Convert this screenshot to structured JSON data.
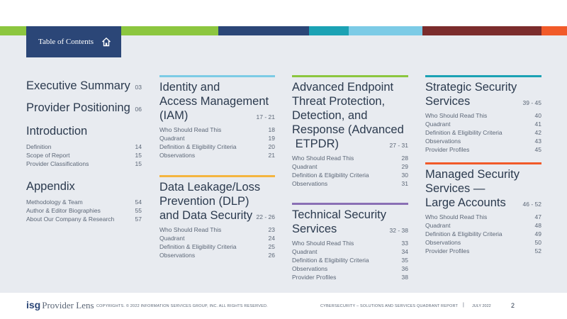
{
  "header": {
    "tab_label": "Table of Contents",
    "tab_icon": "home-icon",
    "color_bar": [
      "#8cc63f",
      "#8cc63f",
      "#2b4677",
      "#1ba2b4",
      "#7ccbe6",
      "#7b2c2c",
      "#f15a29"
    ]
  },
  "col1": {
    "exec_summary": {
      "title": "Executive Summary",
      "page": "03"
    },
    "provider_positioning": {
      "title": "Provider Positioning",
      "page": "06"
    },
    "introduction": {
      "title": "Introduction",
      "items": [
        {
          "label": "Definition",
          "page": "14"
        },
        {
          "label": "Scope of Report",
          "page": "15"
        },
        {
          "label": "Provider Classifications",
          "page": "15"
        }
      ]
    },
    "appendix": {
      "title": "Appendix",
      "items": [
        {
          "label": "Methodology & Team",
          "page": "54"
        },
        {
          "label": "Author & Editor Biographies",
          "page": "55"
        },
        {
          "label": "About Our Company & Research",
          "page": "57"
        }
      ]
    }
  },
  "col2": {
    "iam": {
      "color": "#7ccbe6",
      "title_lines": [
        "Identity and",
        "Access Management",
        "(IAM)"
      ],
      "pages": "17 - 21",
      "items": [
        {
          "label": "Who Should Read This",
          "page": "18"
        },
        {
          "label": "Quadrant",
          "page": "19"
        },
        {
          "label": "Definition & Eligibility Criteria",
          "page": "20"
        },
        {
          "label": "Observations",
          "page": "21"
        }
      ]
    },
    "dlp": {
      "color": "#f4b53f",
      "title_lines": [
        "Data Leakage/Loss",
        "Prevention (DLP)",
        "and Data Security"
      ],
      "pages": "22 - 26",
      "items": [
        {
          "label": "Who Should Read This",
          "page": "23"
        },
        {
          "label": "Quadrant",
          "page": "24"
        },
        {
          "label": "Definition & Eligibility Criteria",
          "page": "25"
        },
        {
          "label": "Observations",
          "page": "26"
        }
      ]
    }
  },
  "col3": {
    "etpdr": {
      "color": "#8cc63f",
      "title_lines": [
        "Advanced Endpoint",
        "Threat Protection,",
        "Detection, and",
        "Response (Advanced",
        " ETPDR)"
      ],
      "pages": "27 - 31",
      "items": [
        {
          "label": "Who Should Read This",
          "page": "28"
        },
        {
          "label": "Quadrant",
          "page": "29"
        },
        {
          "label": "Definition & Eligibility Criteria",
          "page": "30"
        },
        {
          "label": "Observations",
          "page": "31"
        }
      ]
    },
    "tss": {
      "color": "#8a6fb5",
      "title_lines": [
        "Technical Security",
        "Services"
      ],
      "pages": "32 - 38",
      "items": [
        {
          "label": "Who Should Read This",
          "page": "33"
        },
        {
          "label": "Quadrant",
          "page": "34"
        },
        {
          "label": "Definition & Eligibility Criteria",
          "page": "35"
        },
        {
          "label": "Observations",
          "page": "36"
        },
        {
          "label": "Provider Profiles",
          "page": "38"
        }
      ]
    }
  },
  "col4": {
    "sss": {
      "color": "#1ba2b4",
      "title_lines": [
        "Strategic Security",
        "Services"
      ],
      "pages": "39 - 45",
      "items": [
        {
          "label": "Who Should Read This",
          "page": "40"
        },
        {
          "label": "Quadrant",
          "page": "41"
        },
        {
          "label": "Definition & Eligibility Criteria",
          "page": "42"
        },
        {
          "label": "Observations",
          "page": "43"
        },
        {
          "label": "Provider Profiles",
          "page": "45"
        }
      ]
    },
    "mss": {
      "color": "#f15a29",
      "title_lines": [
        "Managed Security",
        "Services —",
        "Large Accounts"
      ],
      "pages": "46 - 52",
      "items": [
        {
          "label": "Who Should Read This",
          "page": "47"
        },
        {
          "label": "Quadrant",
          "page": "48"
        },
        {
          "label": "Definition & Eligibility Criteria",
          "page": "49"
        },
        {
          "label": "Observations",
          "page": "50"
        },
        {
          "label": "Provider Profiles",
          "page": "52"
        }
      ]
    }
  },
  "footer": {
    "logo_isg": "isg",
    "logo_text": "Provider Lens",
    "copyright": "COPYRIGHTS. © 2022 INFORMATION SERVICES GROUP, INC. ALL RIGHTS RESERVED.",
    "report": "CYBERSECURITY – SOLUTIONS AND SERVICES QUADRANT REPORT",
    "separator": "|",
    "date": "JULY 2022",
    "page_number": "2"
  }
}
